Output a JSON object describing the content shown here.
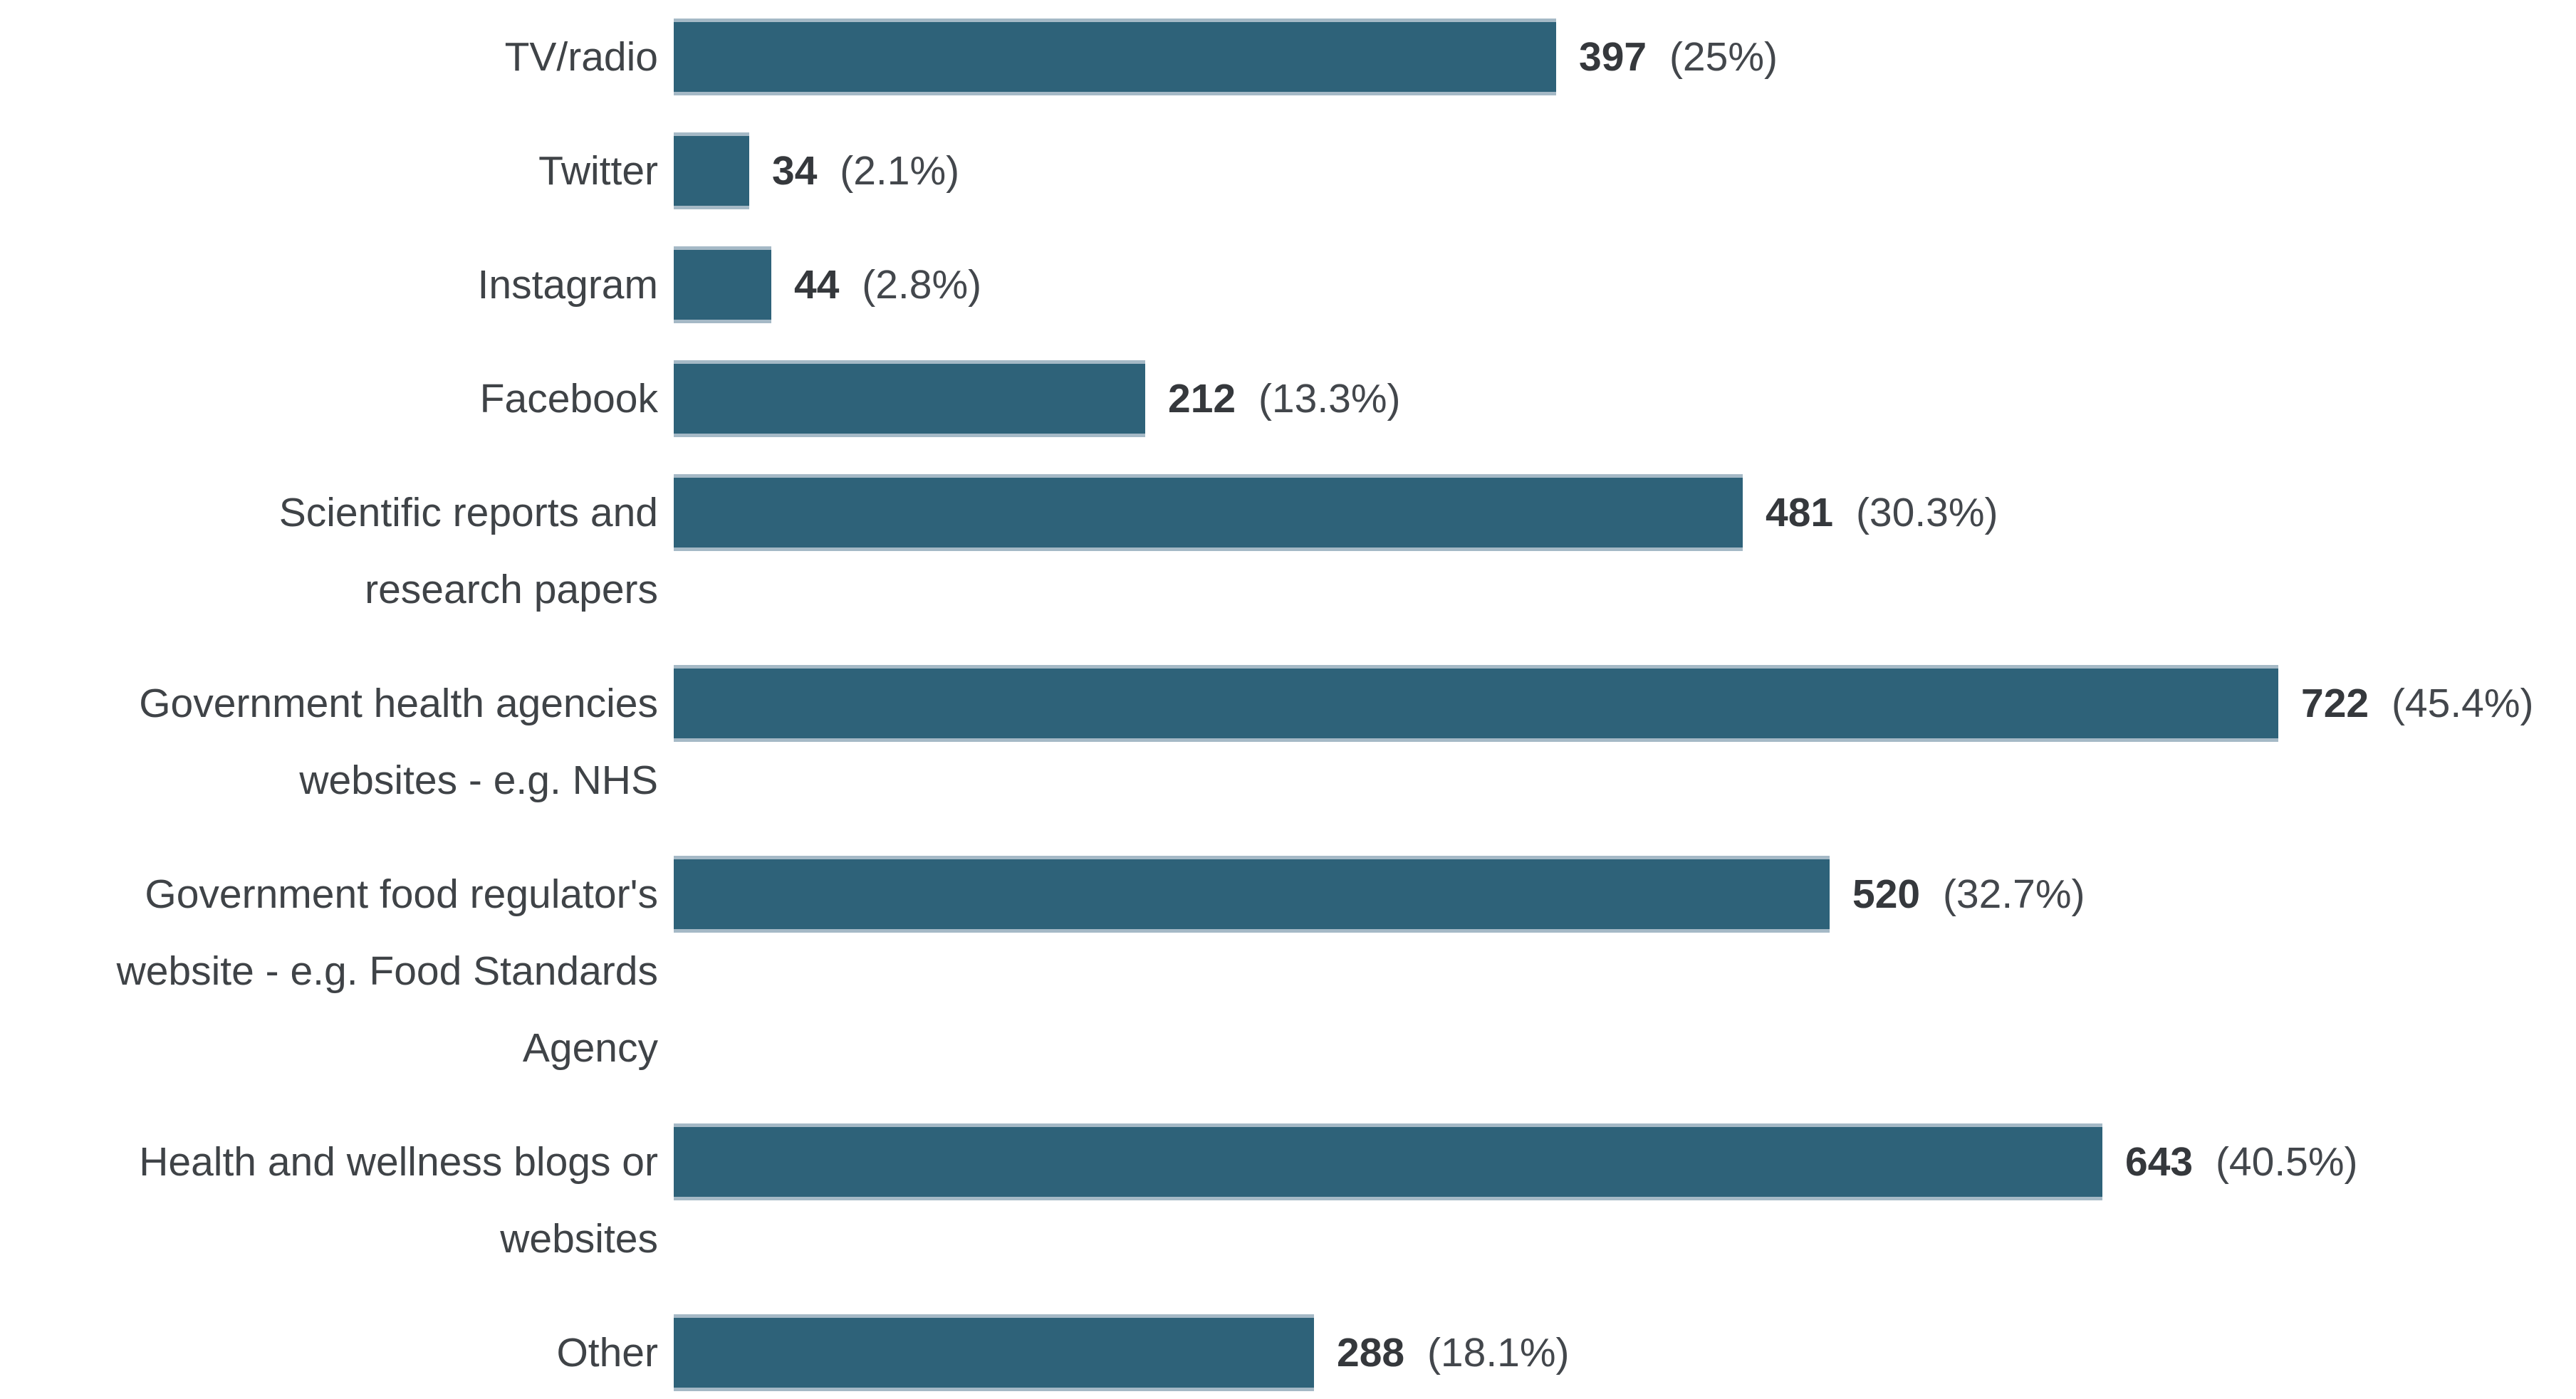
{
  "chart_data": {
    "type": "bar",
    "orientation": "horizontal",
    "title": "",
    "xlabel": "",
    "ylabel": "",
    "value_axis_max": 722,
    "grid": false,
    "legend": false,
    "bar_color": "#2e6279",
    "bar_edge_color": "#a5b9c6",
    "text_color": "#3f4347",
    "categories": [
      "TV/radio",
      "Twitter",
      "Instagram",
      "Facebook",
      "Scientific reports and research papers",
      "Government health agencies websites - e.g. NHS",
      "Government food regulator's website - e.g. Food Standards Agency",
      "Health and wellness blogs or websites",
      "Other"
    ],
    "values": [
      397,
      34,
      44,
      212,
      481,
      722,
      520,
      643,
      288
    ],
    "percents": [
      25,
      2.1,
      2.8,
      13.3,
      30.3,
      45.4,
      32.7,
      40.5,
      18.1
    ],
    "rows": [
      {
        "label_lines": [
          "TV/radio"
        ],
        "value": 397,
        "count_label": "397",
        "percent_label": "(25%)"
      },
      {
        "label_lines": [
          "Twitter"
        ],
        "value": 34,
        "count_label": "34",
        "percent_label": "(2.1%)"
      },
      {
        "label_lines": [
          "Instagram"
        ],
        "value": 44,
        "count_label": "44",
        "percent_label": "(2.8%)"
      },
      {
        "label_lines": [
          "Facebook"
        ],
        "value": 212,
        "count_label": "212",
        "percent_label": "(13.3%)"
      },
      {
        "label_lines": [
          "Scientific reports and",
          "research papers"
        ],
        "value": 481,
        "count_label": "481",
        "percent_label": "(30.3%)"
      },
      {
        "label_lines": [
          "Government health agencies",
          "websites - e.g. NHS"
        ],
        "value": 722,
        "count_label": "722",
        "percent_label": "(45.4%)"
      },
      {
        "label_lines": [
          "Government food regulator's",
          "website - e.g. Food Standards",
          "Agency"
        ],
        "value": 520,
        "count_label": "520",
        "percent_label": "(32.7%)"
      },
      {
        "label_lines": [
          "Health and wellness blogs or",
          "websites"
        ],
        "value": 643,
        "count_label": "643",
        "percent_label": "(40.5%)"
      },
      {
        "label_lines": [
          "Other"
        ],
        "value": 288,
        "count_label": "288",
        "percent_label": "(18.1%)"
      }
    ]
  }
}
